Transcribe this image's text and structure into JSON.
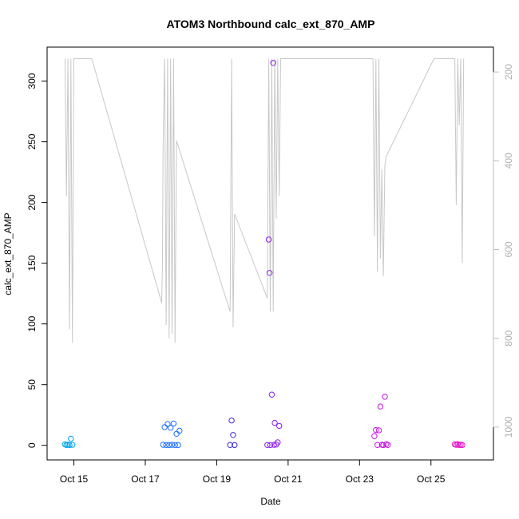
{
  "chart_data": {
    "type": "scatter",
    "title": "ATOM3 Northbound calc_ext_870_AMP",
    "xlabel": "Date",
    "ylabel": "calc_ext_870_AMP",
    "xlim": [
      "2021-10-14T06:00",
      "2021-10-26T18:00"
    ],
    "ylim": [
      -12,
      328
    ],
    "x_ticks": [
      "Oct 15",
      "Oct 17",
      "Oct 19",
      "Oct 21",
      "Oct 23",
      "Oct 25"
    ],
    "x_tick_dates": [
      "2021-10-15",
      "2021-10-17",
      "2021-10-19",
      "2021-10-21",
      "2021-10-23",
      "2021-10-25"
    ],
    "y_ticks": [
      0,
      50,
      100,
      150,
      200,
      250,
      300
    ],
    "secondary_axis": {
      "position": "right",
      "reversed": true,
      "ylim": [
        1074,
        144
      ],
      "ticks": [
        200,
        400,
        600,
        800,
        1000
      ],
      "color": "#bebebe"
    },
    "series": [
      {
        "color": "#00a5e8",
        "points": [
          [
            "2021-10-14T18:00",
            0.8
          ],
          [
            "2021-10-14T19:00",
            0.3
          ],
          [
            "2021-10-14T20:00",
            0.5
          ],
          [
            "2021-10-14T21:00",
            0.2
          ],
          [
            "2021-10-14T22:00",
            5.5
          ],
          [
            "2021-10-14T23:00",
            0.4
          ]
        ]
      },
      {
        "color": "#1e6fff",
        "points": [
          [
            "2021-10-17T12:00",
            0.5
          ],
          [
            "2021-10-17T13:00",
            15.0
          ],
          [
            "2021-10-17T14:00",
            0.3
          ],
          [
            "2021-10-17T15:00",
            17.5
          ],
          [
            "2021-10-17T16:00",
            0.2
          ],
          [
            "2021-10-17T17:00",
            14.5
          ],
          [
            "2021-10-17T18:00",
            0.4
          ],
          [
            "2021-10-17T19:00",
            18.0
          ],
          [
            "2021-10-17T20:00",
            0.3
          ],
          [
            "2021-10-17T21:00",
            9.5
          ],
          [
            "2021-10-17T22:00",
            0.2
          ],
          [
            "2021-10-17T23:00",
            12.0
          ]
        ]
      },
      {
        "color": "#3c28e6",
        "points": [
          [
            "2021-10-19T09:00",
            0.3
          ],
          [
            "2021-10-19T10:00",
            20.5
          ],
          [
            "2021-10-19T11:00",
            8.5
          ],
          [
            "2021-10-19T12:00",
            0.2
          ]
        ]
      },
      {
        "color": "#8c1ef0",
        "points": [
          [
            "2021-10-20T10:00",
            0.3
          ],
          [
            "2021-10-20T11:00",
            169.5
          ],
          [
            "2021-10-20T11:30",
            142.0
          ],
          [
            "2021-10-20T12:00",
            0.2
          ],
          [
            "2021-10-20T13:00",
            41.8
          ],
          [
            "2021-10-20T14:00",
            315.0
          ],
          [
            "2021-10-20T14:30",
            0.4
          ],
          [
            "2021-10-20T15:00",
            18.5
          ],
          [
            "2021-10-20T16:00",
            0.6
          ],
          [
            "2021-10-20T17:00",
            2.5
          ],
          [
            "2021-10-20T18:00",
            16.0
          ]
        ]
      },
      {
        "color": "#c814e6",
        "points": [
          [
            "2021-10-23T10:00",
            7.5
          ],
          [
            "2021-10-23T11:00",
            12.5
          ],
          [
            "2021-10-23T12:00",
            0.3
          ],
          [
            "2021-10-23T13:00",
            12.3
          ],
          [
            "2021-10-23T14:00",
            32.0
          ],
          [
            "2021-10-23T15:00",
            0.5
          ],
          [
            "2021-10-23T16:00",
            0.2
          ],
          [
            "2021-10-23T17:00",
            40.0
          ],
          [
            "2021-10-23T18:00",
            1.0
          ],
          [
            "2021-10-23T19:00",
            0.3
          ]
        ]
      },
      {
        "color": "#e614c8",
        "points": [
          [
            "2021-10-25T16:00",
            0.8
          ],
          [
            "2021-10-25T17:00",
            0.4
          ],
          [
            "2021-10-25T18:00",
            1.0
          ],
          [
            "2021-10-25T19:00",
            0.3
          ],
          [
            "2021-10-25T20:00",
            0.5
          ],
          [
            "2021-10-25T21:00",
            0.2
          ]
        ]
      }
    ],
    "secondary_line": {
      "color": "#c8c8c8",
      "points": [
        [
          "2021-10-14T18:00",
          170
        ],
        [
          "2021-10-14T19:00",
          480
        ],
        [
          "2021-10-14T20:00",
          170
        ],
        [
          "2021-10-14T21:00",
          780
        ],
        [
          "2021-10-14T22:00",
          170
        ],
        [
          "2021-10-14T23:00",
          810
        ],
        [
          "2021-10-15T00:00",
          170
        ],
        [
          "2021-10-15T12:00",
          170
        ],
        [
          "2021-10-17T11:00",
          720
        ],
        [
          "2021-10-17T11:30",
          640
        ],
        [
          "2021-10-17T12:00",
          360
        ],
        [
          "2021-10-17T13:00",
          170
        ],
        [
          "2021-10-17T14:00",
          770
        ],
        [
          "2021-10-17T15:00",
          170
        ],
        [
          "2021-10-17T16:00",
          800
        ],
        [
          "2021-10-17T17:00",
          170
        ],
        [
          "2021-10-17T18:00",
          790
        ],
        [
          "2021-10-17T19:00",
          170
        ],
        [
          "2021-10-17T20:00",
          810
        ],
        [
          "2021-10-17T21:00",
          355
        ],
        [
          "2021-10-19T09:00",
          740
        ],
        [
          "2021-10-19T10:00",
          170
        ],
        [
          "2021-10-19T11:00",
          775
        ],
        [
          "2021-10-19T12:00",
          520
        ],
        [
          "2021-10-20T10:00",
          710
        ],
        [
          "2021-10-20T11:00",
          170
        ],
        [
          "2021-10-20T12:00",
          740
        ],
        [
          "2021-10-20T13:00",
          170
        ],
        [
          "2021-10-20T14:00",
          740
        ],
        [
          "2021-10-20T15:00",
          170
        ],
        [
          "2021-10-20T16:00",
          530
        ],
        [
          "2021-10-20T17:00",
          170
        ],
        [
          "2021-10-20T18:00",
          480
        ],
        [
          "2021-10-20T19:00",
          170
        ],
        [
          "2021-10-23T09:00",
          170
        ],
        [
          "2021-10-23T10:00",
          570
        ],
        [
          "2021-10-23T11:00",
          170
        ],
        [
          "2021-10-23T12:00",
          650
        ],
        [
          "2021-10-23T13:00",
          170
        ],
        [
          "2021-10-23T14:00",
          620
        ],
        [
          "2021-10-23T15:00",
          420
        ],
        [
          "2021-10-23T16:00",
          660
        ],
        [
          "2021-10-23T17:00",
          410
        ],
        [
          "2021-10-23T18:00",
          390
        ],
        [
          "2021-10-25T02:00",
          170
        ],
        [
          "2021-10-25T03:00",
          170
        ],
        [
          "2021-10-25T16:00",
          170
        ],
        [
          "2021-10-25T17:00",
          500
        ],
        [
          "2021-10-25T18:00",
          170
        ],
        [
          "2021-10-25T19:00",
          320
        ],
        [
          "2021-10-25T20:00",
          170
        ],
        [
          "2021-10-25T21:00",
          630
        ],
        [
          "2021-10-25T22:00",
          170
        ]
      ]
    },
    "grid": false,
    "legend": "none"
  }
}
